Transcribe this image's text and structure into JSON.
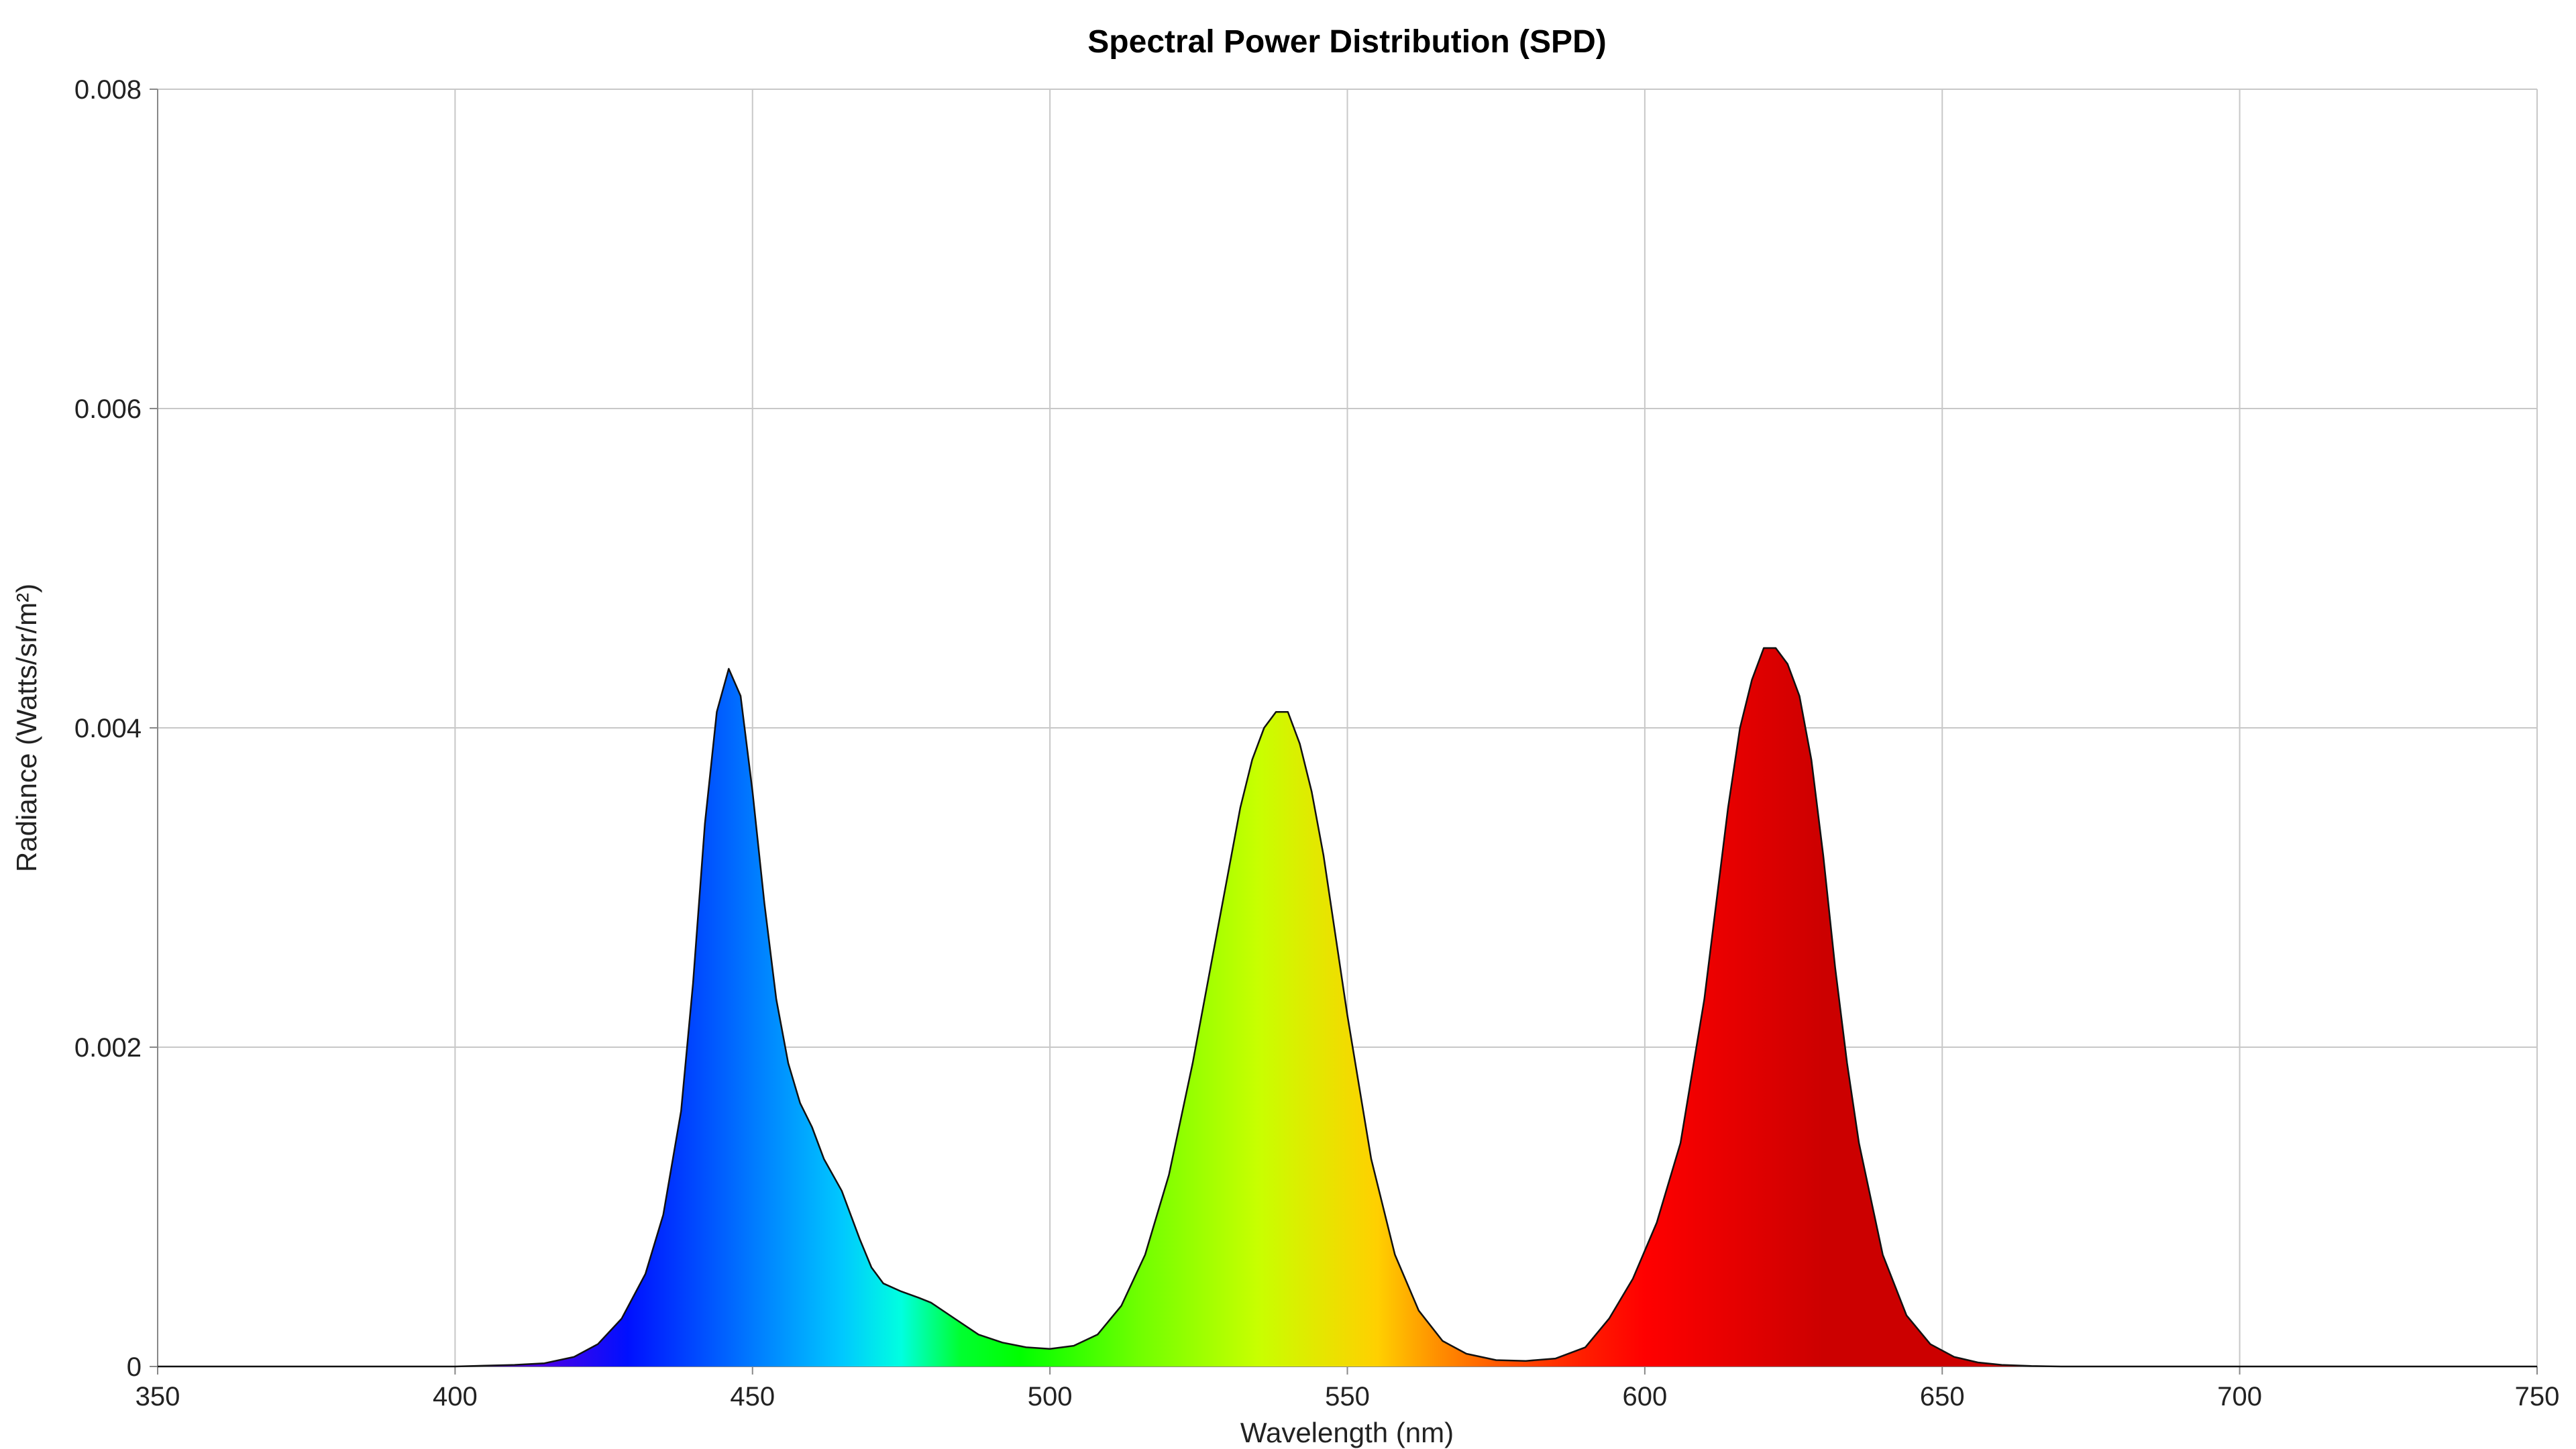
{
  "chart_data": {
    "type": "area",
    "title": "Spectral Power Distribution (SPD)",
    "xlabel": "Wavelength (nm)",
    "ylabel": "Radiance (Watts/sr/m²)",
    "xlim": [
      350,
      750
    ],
    "ylim": [
      0,
      0.008
    ],
    "x_ticks": [
      350,
      400,
      450,
      500,
      550,
      600,
      650,
      700,
      750
    ],
    "x_tick_labels": [
      "350",
      "400",
      "450",
      "500",
      "550",
      "600",
      "650",
      "700",
      "750"
    ],
    "y_ticks": [
      0,
      0.002,
      0.004,
      0.006,
      0.008
    ],
    "y_tick_labels": [
      "0",
      "0.002",
      "0.004",
      "0.006",
      "0.008"
    ],
    "grid": true,
    "fill": "visible-spectrum gradient under curve",
    "series": [
      {
        "x": [
          350,
          400,
          405,
          410,
          415,
          420,
          424,
          428,
          432,
          435,
          438,
          440,
          442,
          444,
          446,
          448,
          450,
          452,
          454,
          456,
          458,
          460,
          462,
          465,
          468,
          470,
          472,
          475,
          478,
          480,
          484,
          488,
          492,
          496,
          500,
          504,
          508,
          512,
          516,
          520,
          524,
          528,
          532,
          534,
          536,
          538,
          540,
          542,
          544,
          546,
          550,
          554,
          558,
          562,
          566,
          570,
          575,
          580,
          585,
          590,
          594,
          598,
          602,
          606,
          610,
          612,
          614,
          616,
          618,
          620,
          622,
          624,
          626,
          628,
          630,
          632,
          634,
          636,
          640,
          644,
          648,
          652,
          656,
          660,
          665,
          670,
          680,
          700,
          750
        ],
        "y": [
          0,
          0,
          5e-06,
          1e-05,
          2e-05,
          6e-05,
          0.00014,
          0.0003,
          0.00058,
          0.00095,
          0.0016,
          0.0024,
          0.0034,
          0.0041,
          0.00437,
          0.0042,
          0.0036,
          0.0029,
          0.0023,
          0.0019,
          0.00165,
          0.0015,
          0.0013,
          0.0011,
          0.0008,
          0.00062,
          0.00052,
          0.00047,
          0.00043,
          0.0004,
          0.0003,
          0.0002,
          0.00015,
          0.00012,
          0.00011,
          0.00013,
          0.0002,
          0.00038,
          0.0007,
          0.0012,
          0.0019,
          0.0027,
          0.0035,
          0.0038,
          0.004,
          0.0041,
          0.0041,
          0.0039,
          0.0036,
          0.0032,
          0.0022,
          0.0013,
          0.0007,
          0.00035,
          0.00016,
          8e-05,
          4e-05,
          3.5e-05,
          5e-05,
          0.00012,
          0.0003,
          0.00055,
          0.0009,
          0.0014,
          0.0023,
          0.0029,
          0.0035,
          0.004,
          0.0043,
          0.0045,
          0.0045,
          0.0044,
          0.0042,
          0.0038,
          0.0032,
          0.0025,
          0.0019,
          0.0014,
          0.0007,
          0.00032,
          0.00014,
          6e-05,
          2.5e-05,
          1e-05,
          3e-06,
          0,
          0,
          0,
          0
        ]
      }
    ]
  }
}
